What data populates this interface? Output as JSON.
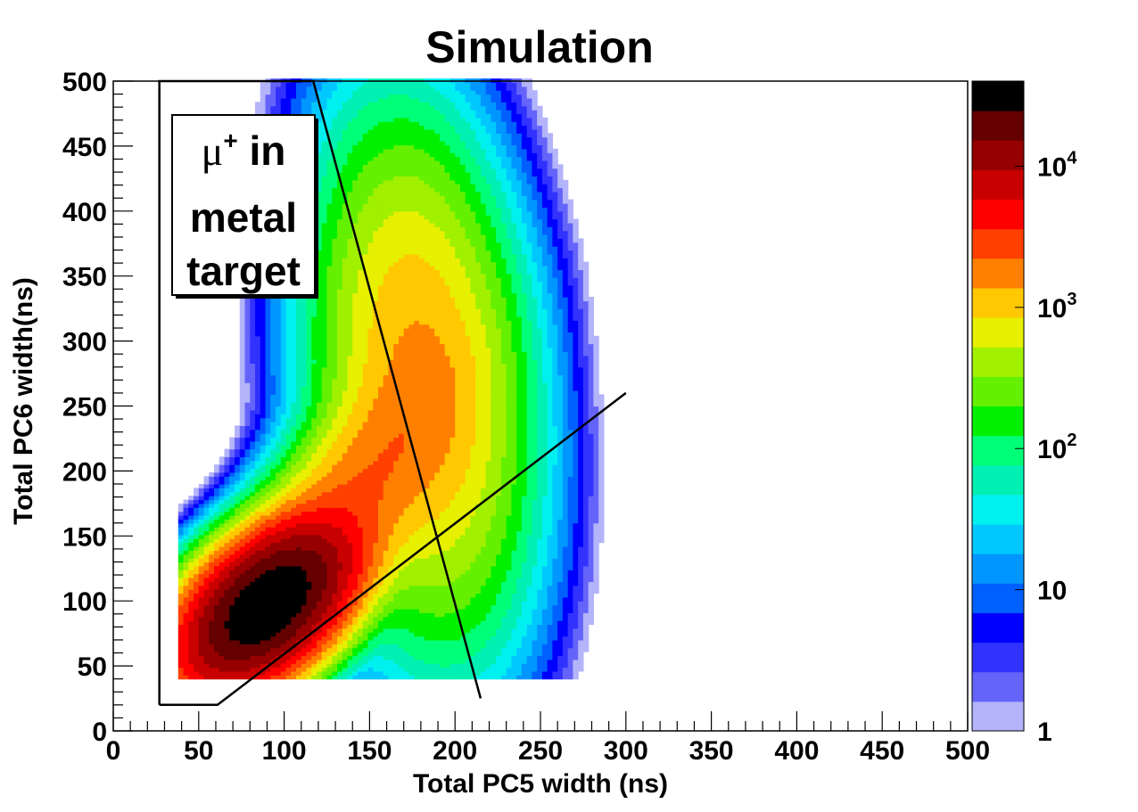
{
  "chart_data": {
    "type": "heatmap",
    "title": "Simulation",
    "xlabel": "Total PC5 width (ns)",
    "ylabel": "Total PC6 width(ns)",
    "xlim": [
      0,
      500
    ],
    "ylim": [
      0,
      500
    ],
    "x_ticks": [
      "0",
      "50",
      "100",
      "150",
      "200",
      "250",
      "300",
      "350",
      "400",
      "450",
      "500"
    ],
    "y_ticks": [
      "0",
      "50",
      "100",
      "150",
      "200",
      "250",
      "300",
      "350",
      "400",
      "450",
      "500"
    ],
    "z_scale": "log",
    "zlim": [
      1,
      40000
    ],
    "colorbar_ticks": [
      {
        "label": "1",
        "value": 1
      },
      {
        "label": "10",
        "value": 10
      },
      {
        "label": "10",
        "sup": "2",
        "value": 100
      },
      {
        "label": "10",
        "sup": "3",
        "value": 1000
      },
      {
        "label": "10",
        "sup": "4",
        "value": 10000
      }
    ],
    "palette": [
      "#b4b4fa",
      "#6464fa",
      "#3232ff",
      "#0000ff",
      "#0060ff",
      "#0096ff",
      "#00c8ff",
      "#00f0f0",
      "#00f0b4",
      "#00ff78",
      "#00f000",
      "#64f000",
      "#a0f000",
      "#e6f000",
      "#ffc800",
      "#ff8000",
      "#ff4000",
      "#ff0000",
      "#c80000",
      "#960000",
      "#640000",
      "#000000"
    ],
    "distributions": [
      {
        "center": [
          90,
          97
        ],
        "sigma": [
          24,
          30
        ],
        "peak": 40000,
        "rho": 0.5
      },
      {
        "center": [
          180,
          270
        ],
        "sigma": [
          28,
          90
        ],
        "peak": 1500,
        "rho": -0.2
      },
      {
        "center": [
          135,
          170
        ],
        "sigma": [
          32,
          55
        ],
        "peak": 2000,
        "rho": 0.7
      }
    ],
    "data_region": {
      "x": [
        38,
        300
      ],
      "y": [
        40,
        500
      ]
    },
    "cut_lines": [
      {
        "points": [
          [
            27,
            20
          ],
          [
            27,
            500
          ],
          [
            117,
            500
          ],
          [
            215,
            25
          ]
        ]
      },
      {
        "points": [
          [
            27,
            20
          ],
          [
            61,
            20
          ],
          [
            300,
            260
          ]
        ]
      }
    ],
    "annotation": {
      "line1_symbol": "μ",
      "line1_sup": "+",
      "line1_text": " in",
      "line2": "metal",
      "line3": "target"
    }
  }
}
